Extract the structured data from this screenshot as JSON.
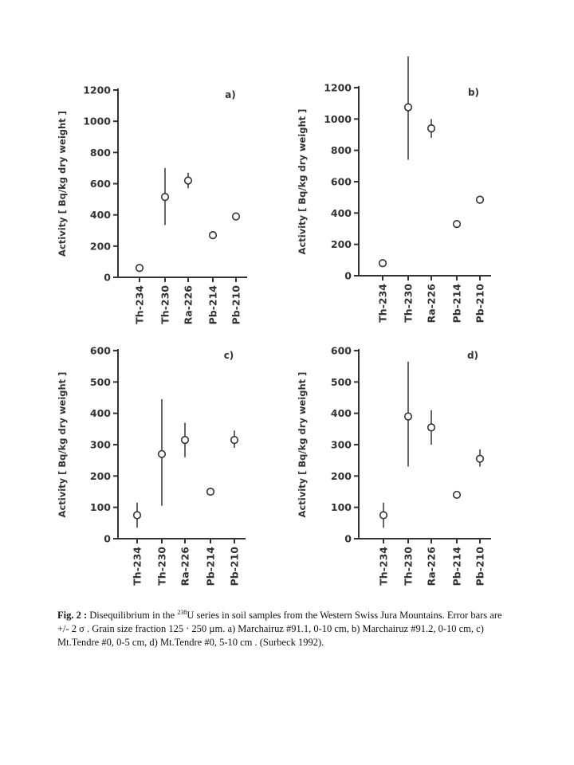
{
  "chart_data": [
    {
      "type": "scatter",
      "panel_label": "a)",
      "ylabel": "Activity [ Bq/kg dry weight ]",
      "categories": [
        "Th-234",
        "Th-230",
        "Ra-226",
        "Pb-214",
        "Pb-210"
      ],
      "values": [
        60,
        515,
        620,
        270,
        390
      ],
      "error_low": [
        null,
        335,
        570,
        null,
        null
      ],
      "error_high": [
        null,
        700,
        670,
        null,
        null
      ],
      "ylim": [
        0,
        1200
      ],
      "yticks": [
        0,
        200,
        400,
        600,
        800,
        1000,
        1200
      ],
      "grid": false
    },
    {
      "type": "scatter",
      "panel_label": "b)",
      "ylabel": "Activity [ Bq/kg dry weight ]",
      "categories": [
        "Th-234",
        "Th-230",
        "Ra-226",
        "Pb-214",
        "Pb-210"
      ],
      "values": [
        80,
        1075,
        940,
        330,
        485
      ],
      "error_low": [
        null,
        740,
        880,
        null,
        null
      ],
      "error_high": [
        null,
        1400,
        1000,
        null,
        null
      ],
      "ylim": [
        0,
        1200
      ],
      "yticks": [
        0,
        200,
        400,
        600,
        800,
        1000,
        1200
      ],
      "grid": false
    },
    {
      "type": "scatter",
      "panel_label": "c)",
      "ylabel": "Activity [ Bq/kg dry weight ]",
      "categories": [
        "Th-234",
        "Th-230",
        "Ra-226",
        "Pb-214",
        "Pb-210"
      ],
      "values": [
        75,
        270,
        315,
        150,
        315
      ],
      "error_low": [
        35,
        105,
        260,
        null,
        290
      ],
      "error_high": [
        115,
        445,
        370,
        null,
        345
      ],
      "ylim": [
        0,
        600
      ],
      "yticks": [
        0,
        100,
        200,
        300,
        400,
        500,
        600
      ],
      "grid": false
    },
    {
      "type": "scatter",
      "panel_label": "d)",
      "ylabel": "Activity [ Bq/kg dry weight ]",
      "categories": [
        "Th-234",
        "Th-230",
        "Ra-226",
        "Pb-214",
        "Pb-210"
      ],
      "values": [
        75,
        390,
        355,
        140,
        255
      ],
      "error_low": [
        35,
        230,
        300,
        null,
        230
      ],
      "error_high": [
        115,
        565,
        410,
        null,
        285
      ],
      "ylim": [
        0,
        600
      ],
      "yticks": [
        0,
        100,
        200,
        300,
        400,
        500,
        600
      ],
      "grid": false
    }
  ],
  "caption": {
    "label": "Fig. 2 :",
    "text_before_sup": " Disequilibrium in the ",
    "sup": "238",
    "text_after_sup": "U series in soil samples from the Western Swiss Jura Mountains. Error bars are  +/- 2 σ . Grain size fraction 125  ‧  250 µm. a) Marchairuz #91.1, 0-10 cm, b) Marchairuz #91.2, 0-10 cm, c) Mt.Tendre #0, 0-5 cm, d)  Mt.Tendre #0, 5-10 cm .  (Surbeck 1992)."
  }
}
